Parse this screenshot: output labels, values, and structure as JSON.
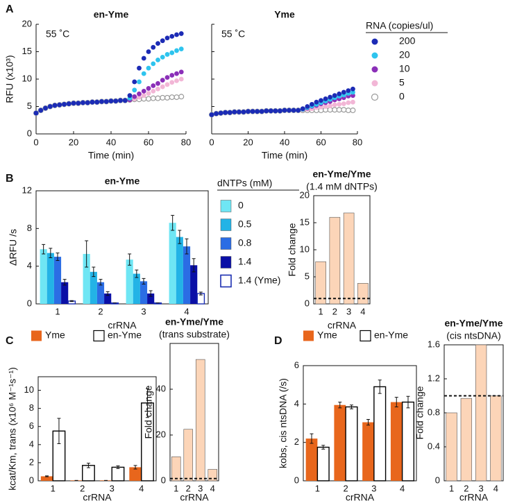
{
  "panel_labels": [
    "A",
    "B",
    "C",
    "D"
  ],
  "chart_data": [
    {
      "type": "scatter",
      "title": "en-Yme",
      "annotation": "55 ˚C",
      "x_label": "Time (min)",
      "y_label": "RFU (x10³)",
      "legend": "right",
      "legend_title": "RNA (copies/ul)",
      "x": [
        0,
        2.5,
        5,
        7.5,
        10,
        12.5,
        15,
        17.5,
        20,
        22.5,
        25,
        27.5,
        30,
        32.5,
        35,
        37.5,
        40,
        42.5,
        45,
        47.5,
        50,
        52.5,
        55,
        57.5,
        60,
        62.5,
        65,
        67.5,
        70,
        72.5,
        75,
        77.5
      ],
      "xlim": [
        0,
        80
      ],
      "xticks": [
        0,
        20,
        40,
        60,
        80
      ],
      "ylim": [
        0,
        20
      ],
      "yticks": [
        0,
        5,
        10,
        15,
        20
      ],
      "series": [
        {
          "name": "200",
          "color": "#1c2bb5",
          "values": [
            3.8,
            4.3,
            4.7,
            5.0,
            5.2,
            5.3,
            5.4,
            5.5,
            5.6,
            5.6,
            5.7,
            5.7,
            5.8,
            5.8,
            5.9,
            5.9,
            6.0,
            6.0,
            6.1,
            6.1,
            7.0,
            9.5,
            12.0,
            13.8,
            15.0,
            15.8,
            16.5,
            17.0,
            17.5,
            17.8,
            18.1,
            18.3
          ]
        },
        {
          "name": "20",
          "color": "#2ec4ee",
          "values": [
            3.8,
            4.3,
            4.7,
            5.0,
            5.2,
            5.3,
            5.4,
            5.5,
            5.6,
            5.6,
            5.7,
            5.7,
            5.8,
            5.8,
            5.9,
            5.9,
            6.0,
            6.0,
            6.1,
            6.1,
            6.5,
            8.0,
            9.5,
            11.0,
            12.0,
            12.8,
            13.5,
            14.0,
            14.5,
            14.8,
            15.2,
            15.5
          ]
        },
        {
          "name": "10",
          "color": "#8b2fb8",
          "values": [
            3.8,
            4.3,
            4.7,
            5.0,
            5.2,
            5.3,
            5.4,
            5.5,
            5.6,
            5.6,
            5.7,
            5.7,
            5.8,
            5.8,
            5.9,
            5.9,
            6.0,
            6.0,
            6.1,
            6.1,
            6.2,
            6.8,
            7.3,
            7.8,
            8.3,
            8.8,
            9.2,
            9.8,
            10.3,
            10.7,
            11.0,
            11.3
          ]
        },
        {
          "name": "5",
          "color": "#f2b6d6",
          "values": [
            3.8,
            4.3,
            4.7,
            5.0,
            5.2,
            5.3,
            5.4,
            5.5,
            5.6,
            5.6,
            5.7,
            5.7,
            5.8,
            5.8,
            5.9,
            5.9,
            6.0,
            6.0,
            6.1,
            6.1,
            6.2,
            6.4,
            6.7,
            7.0,
            7.4,
            7.8,
            8.2,
            8.6,
            9.0,
            9.4,
            9.7,
            10.0
          ]
        },
        {
          "name": "0",
          "color": "#9a9a9a",
          "hollow": true,
          "values": [
            3.8,
            4.3,
            4.7,
            5.0,
            5.2,
            5.3,
            5.4,
            5.5,
            5.6,
            5.6,
            5.7,
            5.7,
            5.8,
            5.8,
            5.9,
            5.9,
            6.0,
            6.0,
            6.1,
            6.1,
            6.2,
            6.3,
            6.3,
            6.4,
            6.4,
            6.5,
            6.5,
            6.6,
            6.6,
            6.7,
            6.7,
            6.8
          ]
        }
      ]
    },
    {
      "type": "scatter",
      "title": "Yme",
      "annotation": "55 ˚C",
      "x_label": "Time (min)",
      "x": [
        0,
        2.5,
        5,
        7.5,
        10,
        12.5,
        15,
        17.5,
        20,
        22.5,
        25,
        27.5,
        30,
        32.5,
        35,
        37.5,
        40,
        42.5,
        45,
        47.5,
        50,
        52.5,
        55,
        57.5,
        60,
        62.5,
        65,
        67.5,
        70,
        72.5,
        75,
        77.5
      ],
      "xlim": [
        0,
        80
      ],
      "xticks": [
        0,
        20,
        40,
        60,
        80
      ],
      "ylim": [
        0,
        20
      ],
      "yticks": [
        0,
        5,
        10,
        15,
        20
      ],
      "ytick_labels": false,
      "series": [
        {
          "color": "#1c2bb5",
          "values": [
            3.5,
            3.7,
            3.8,
            3.9,
            3.9,
            4.0,
            4.0,
            4.0,
            4.1,
            4.1,
            4.1,
            4.1,
            4.2,
            4.2,
            4.2,
            4.2,
            4.3,
            4.3,
            4.3,
            4.3,
            4.6,
            5.0,
            5.4,
            5.8,
            6.1,
            6.4,
            6.7,
            7.0,
            7.3,
            7.6,
            7.9,
            8.2
          ]
        },
        {
          "color": "#2ec4ee",
          "values": [
            3.5,
            3.7,
            3.8,
            3.9,
            3.9,
            4.0,
            4.0,
            4.0,
            4.1,
            4.1,
            4.1,
            4.1,
            4.2,
            4.2,
            4.2,
            4.2,
            4.3,
            4.3,
            4.3,
            4.3,
            4.5,
            4.8,
            5.1,
            5.4,
            5.7,
            6.0,
            6.3,
            6.6,
            6.9,
            7.1,
            7.4,
            7.6
          ]
        },
        {
          "color": "#8b2fb8",
          "values": [
            3.5,
            3.7,
            3.8,
            3.9,
            3.9,
            4.0,
            4.0,
            4.0,
            4.1,
            4.1,
            4.1,
            4.1,
            4.2,
            4.2,
            4.2,
            4.2,
            4.3,
            4.3,
            4.3,
            4.3,
            4.5,
            4.7,
            5.0,
            5.2,
            5.5,
            5.7,
            5.9,
            6.2,
            6.4,
            6.6,
            6.9,
            7.0
          ]
        },
        {
          "color": "#f2b6d6",
          "values": [
            3.5,
            3.7,
            3.8,
            3.9,
            3.9,
            4.0,
            4.0,
            4.0,
            4.1,
            4.1,
            4.1,
            4.1,
            4.2,
            4.2,
            4.2,
            4.2,
            4.3,
            4.3,
            4.3,
            4.3,
            4.4,
            4.5,
            4.6,
            4.8,
            4.9,
            5.0,
            5.1,
            5.3,
            5.4,
            5.5,
            5.7,
            5.8
          ]
        },
        {
          "color": "#9a9a9a",
          "hollow": true,
          "values": [
            3.5,
            3.7,
            3.8,
            3.9,
            3.9,
            4.0,
            4.0,
            4.0,
            4.1,
            4.1,
            4.1,
            4.1,
            4.2,
            4.2,
            4.2,
            4.2,
            4.3,
            4.3,
            4.3,
            4.3,
            4.3,
            4.3,
            4.3,
            4.3,
            4.3,
            4.4,
            4.4,
            4.4,
            4.4,
            4.4,
            4.3,
            4.3
          ]
        }
      ]
    },
    {
      "type": "bar",
      "title": "en-Yme",
      "x_label": "crRNA",
      "y_label": "ΔRFU /s",
      "legend": "right",
      "legend_title": "dNTPs (mM)",
      "categories": [
        "1",
        "2",
        "3",
        "4"
      ],
      "ylim": [
        0,
        12
      ],
      "yticks": [
        0,
        4,
        8,
        12
      ],
      "series": [
        {
          "name": "0",
          "color": "#6fe6f4",
          "values": [
            5.8,
            5.3,
            4.7,
            8.6
          ],
          "errors": [
            0.5,
            1.4,
            0.6,
            0.8
          ]
        },
        {
          "name": "0.5",
          "color": "#23b3e6",
          "values": [
            5.4,
            3.4,
            3.2,
            7.1
          ],
          "errors": [
            0.5,
            0.5,
            0.4,
            0.7
          ]
        },
        {
          "name": "0.8",
          "color": "#2b6de4",
          "values": [
            5.0,
            2.3,
            2.4,
            6.1
          ],
          "errors": [
            0.4,
            0.3,
            0.3,
            0.8
          ]
        },
        {
          "name": "1.4",
          "color": "#0a0fa6",
          "values": [
            2.3,
            1.1,
            1.1,
            4.1
          ],
          "errors": [
            0.3,
            0.2,
            0.3,
            0.7
          ]
        },
        {
          "name": "1.4 (Yme)",
          "color": "#1a2db0",
          "hollow": true,
          "values": [
            0.3,
            0.1,
            0.1,
            1.1
          ],
          "errors": [
            0.05,
            0,
            0,
            0.15
          ]
        }
      ]
    },
    {
      "type": "bar",
      "title": "en-Yme/Yme",
      "subtitle": "(1.4 mM dNTPs)",
      "x_label": "crRNA",
      "y_label": "Fold change",
      "categories": [
        "1",
        "2",
        "3",
        "4"
      ],
      "values": [
        7.8,
        16,
        16.8,
        3.8
      ],
      "color": "#fcd5b8",
      "reference_line": 1,
      "ylim": [
        0,
        20
      ],
      "yticks": [
        0,
        5,
        10,
        15,
        20
      ]
    },
    {
      "type": "bar",
      "x_label": "crRNA",
      "y_label": "kcat/Km, trans (x10⁶ M⁻¹s⁻¹)",
      "legend": "top",
      "categories": [
        "1",
        "2",
        "3",
        "4"
      ],
      "ylim": [
        0,
        11.5
      ],
      "yticks": [
        0,
        2,
        4,
        6,
        8,
        10
      ],
      "series": [
        {
          "name": "Yme",
          "color": "#e8661c",
          "values": [
            0.5,
            0.05,
            0.05,
            1.5
          ],
          "errors": [
            0.05,
            0,
            0,
            0.2
          ]
        },
        {
          "name": "en-Yme",
          "color": "#000000",
          "hollow": true,
          "values": [
            5.5,
            1.7,
            1.5,
            8.6
          ],
          "errors": [
            1.4,
            0.25,
            0.15,
            1.6
          ]
        }
      ]
    },
    {
      "type": "bar",
      "title": "en-Yme/Yme",
      "subtitle": "(trans substrate)",
      "x_label": "crRNA",
      "y_label": "Fold change",
      "categories": [
        "1",
        "2",
        "3",
        "4"
      ],
      "values": [
        10.5,
        22.5,
        53,
        5
      ],
      "color": "#fcd5b8",
      "reference_line": 1,
      "ylim": [
        0,
        60
      ],
      "yticks": [
        0,
        20,
        40
      ]
    },
    {
      "type": "bar",
      "x_label": "crRNA",
      "y_label": "kobs, cis ntsDNA (/s)",
      "legend": "top",
      "categories": [
        "1",
        "2",
        "3",
        "4"
      ],
      "ylim": [
        0,
        6
      ],
      "yticks": [
        0,
        2,
        4,
        6
      ],
      "series": [
        {
          "name": "Yme",
          "color": "#e8661c",
          "values": [
            2.2,
            3.95,
            3.05,
            4.1
          ],
          "errors": [
            0.25,
            0.15,
            0.15,
            0.25
          ]
        },
        {
          "name": "en-Yme",
          "color": "#000000",
          "hollow": true,
          "values": [
            1.75,
            3.85,
            4.9,
            4.1
          ],
          "errors": [
            0.1,
            0.1,
            0.35,
            0.3
          ]
        }
      ]
    },
    {
      "type": "bar",
      "title": "en-Yme/Yme",
      "subtitle": "(cis ntsDNA)",
      "x_label": "crRNA",
      "y_label": "Fold change",
      "categories": [
        "1",
        "2",
        "3",
        "4"
      ],
      "values": [
        0.8,
        0.97,
        1.6,
        1.0
      ],
      "color": "#fcd5b8",
      "reference_line": 1,
      "ylim": [
        0,
        1.6
      ],
      "yticks": [
        0,
        0.4,
        0.8,
        1.2,
        1.6
      ]
    }
  ]
}
